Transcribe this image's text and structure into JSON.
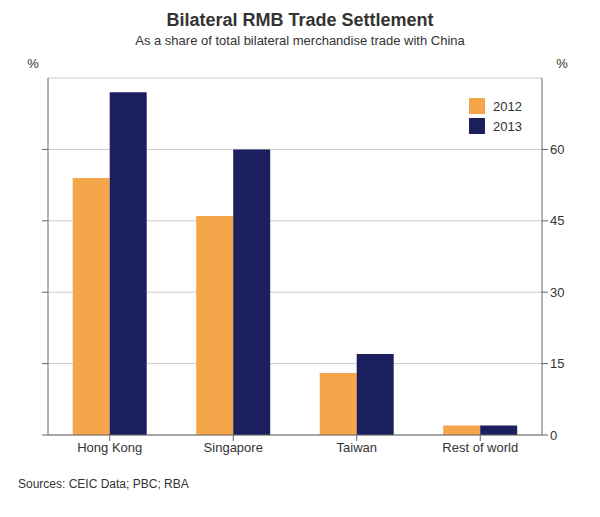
{
  "chart_data": {
    "type": "bar",
    "title": "Bilateral RMB Trade Settlement",
    "subtitle": "As a share of total bilateral merchandise trade with China",
    "categories": [
      "Hong Kong",
      "Singapore",
      "Taiwan",
      "Rest of world"
    ],
    "series": [
      {
        "name": "2012",
        "color": "#F5A54A",
        "values": [
          54,
          46,
          13,
          2
        ]
      },
      {
        "name": "2013",
        "color": "#1B1F5E",
        "values": [
          72,
          60,
          17,
          2
        ]
      }
    ],
    "ylim": [
      0,
      75
    ],
    "yticks": [
      0,
      15,
      30,
      45,
      60
    ],
    "y2lim": [
      0,
      75
    ],
    "y2ticks": [
      0,
      15,
      30,
      45,
      60
    ],
    "y_label": "%",
    "y2_label": "%",
    "grid": true,
    "legend": "upper right",
    "source": "Sources:  CEIC Data; PBC; RBA"
  }
}
